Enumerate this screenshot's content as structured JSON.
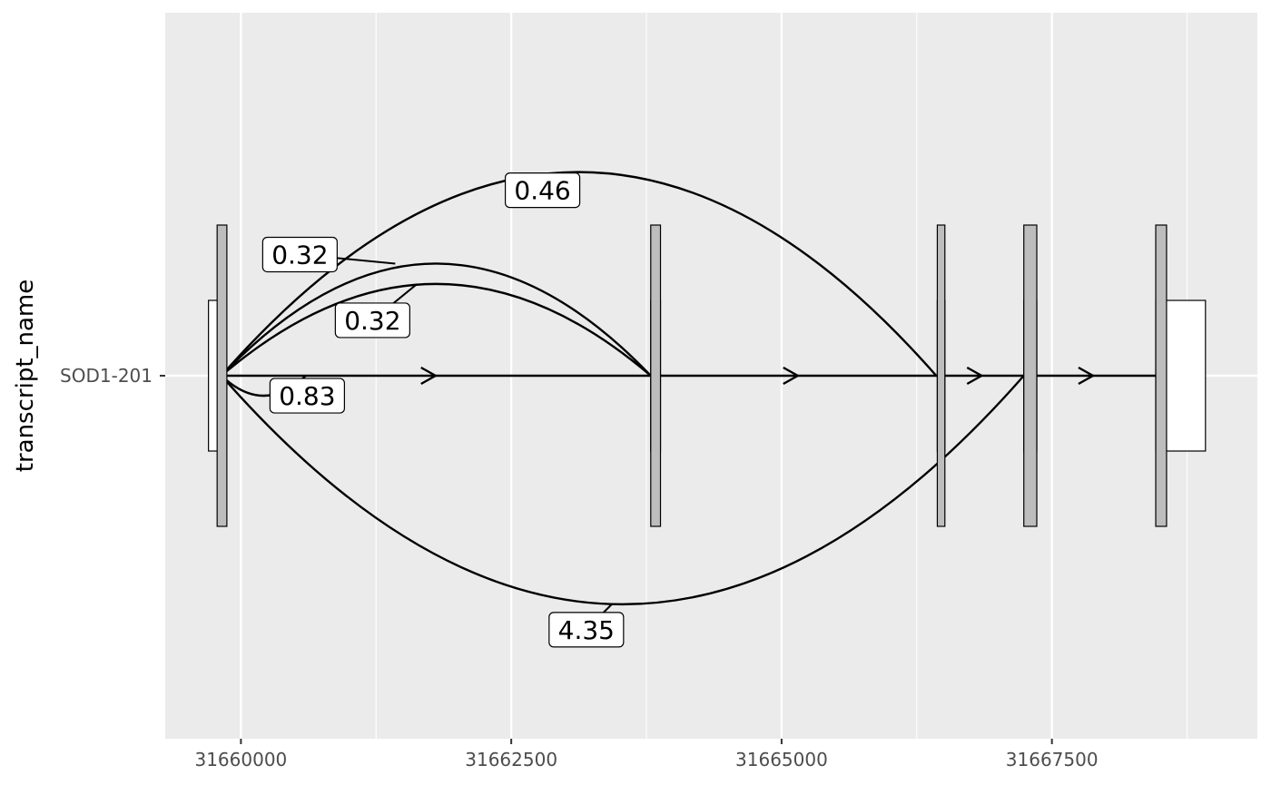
{
  "chart_data": {
    "type": "transcript-junction-plot",
    "xlabel": "",
    "ylabel": "transcript_name",
    "xlim": [
      31659300,
      31669400
    ],
    "x_ticks": [
      31660000,
      31662500,
      31665000,
      31667500
    ],
    "x_tick_labels": [
      "31660000",
      "31662500",
      "31665000",
      "31667500"
    ],
    "transcripts": [
      {
        "name": "SOD1-201",
        "strand": "+",
        "exons": [
          {
            "start": 31659700,
            "end": 31659870
          },
          {
            "start": 31663790,
            "end": 31663880
          },
          {
            "start": 31666440,
            "end": 31666510
          },
          {
            "start": 31667240,
            "end": 31667360
          },
          {
            "start": 31668460,
            "end": 31668920
          }
        ],
        "cds": [
          {
            "start": 31659780,
            "end": 31659870
          },
          {
            "start": 31663790,
            "end": 31663880
          },
          {
            "start": 31666440,
            "end": 31666510
          },
          {
            "start": 31667240,
            "end": 31667360
          },
          {
            "start": 31668460,
            "end": 31668560
          }
        ],
        "intron_arrows_at": [
          31661800,
          31665150,
          31666850,
          31667880
        ]
      }
    ],
    "junctions": [
      {
        "start": 31659820,
        "end": 31666430,
        "value": 0.46,
        "label": "0.46",
        "side": "top",
        "curvature": 0.6
      },
      {
        "start": 31659820,
        "end": 31663790,
        "value": 0.32,
        "label": "0.32",
        "side": "top",
        "curvature": 0.55
      },
      {
        "start": 31659820,
        "end": 31663790,
        "value": 0.32,
        "label": "0.32",
        "side": "top",
        "curvature": 0.45
      },
      {
        "start": 31659820,
        "end": 31660600,
        "value": 0.83,
        "label": "0.83",
        "side": "bottom",
        "curvature": 0.5
      },
      {
        "start": 31659820,
        "end": 31667240,
        "value": 4.35,
        "label": "4.35",
        "side": "bottom",
        "curvature": 0.6
      }
    ],
    "colors": {
      "panel_background": "#ebebeb",
      "grid_major": "#ffffff",
      "cds_fill": "#bdbdbd",
      "utr_fill": "#ffffff",
      "line": "#000000",
      "label_fill": "#ffffff"
    },
    "grid": true,
    "legend": "none"
  }
}
